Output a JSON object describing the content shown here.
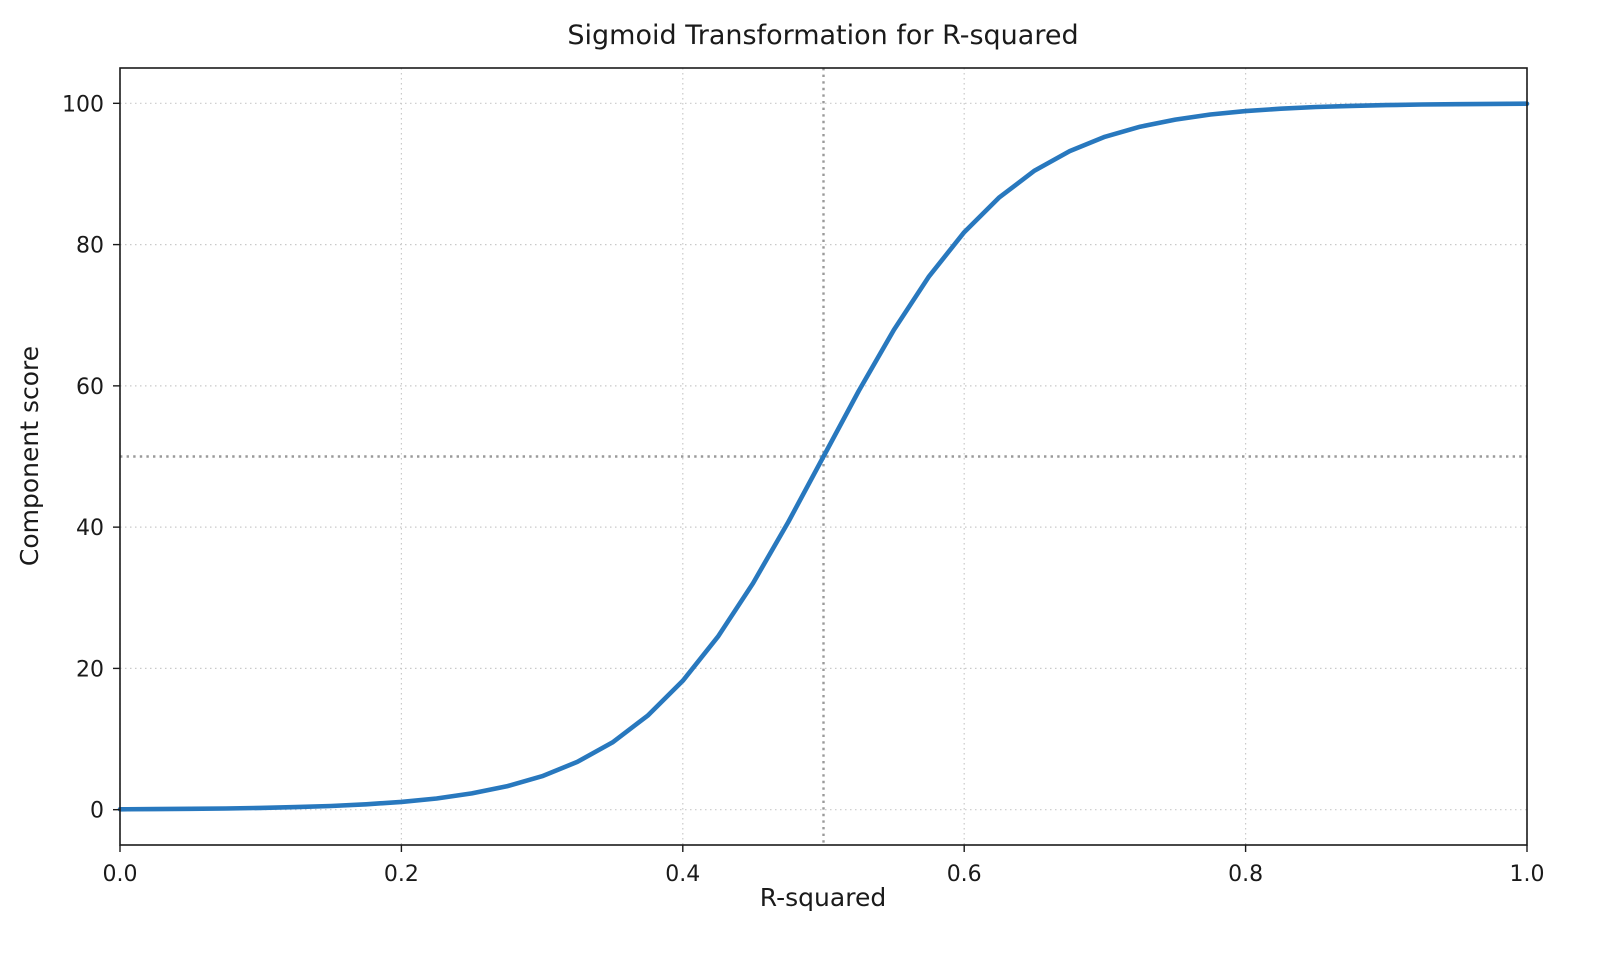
{
  "chart_data": {
    "type": "line",
    "title": "Sigmoid Transformation for R-squared",
    "xlabel": "R-squared",
    "ylabel": "Component score",
    "xlim": [
      0,
      1
    ],
    "ylim": [
      -5,
      105
    ],
    "x_ticks": [
      0.0,
      0.2,
      0.4,
      0.6,
      0.8,
      1.0
    ],
    "x_tick_labels": [
      "0.0",
      "0.2",
      "0.4",
      "0.6",
      "0.8",
      "1.0"
    ],
    "y_ticks": [
      0,
      20,
      40,
      60,
      80,
      100
    ],
    "y_tick_labels": [
      "0",
      "20",
      "40",
      "60",
      "80",
      "100"
    ],
    "grid": true,
    "legend": "none",
    "function": "y = 100 / (1 + exp(-15 * (x - 0.5)))",
    "reference_lines": {
      "x": 0.5,
      "y": 50,
      "style": "dotted"
    },
    "colors": {
      "line": "#2878be",
      "grid": "#c9c9c9",
      "reference": "#9a9a9a",
      "axis": "#1a1a1a",
      "background": "#ffffff"
    },
    "series": [
      {
        "name": "sigmoid",
        "x": [
          0,
          0.025,
          0.05,
          0.075,
          0.1,
          0.125,
          0.15,
          0.175,
          0.2,
          0.225,
          0.25,
          0.275,
          0.3,
          0.325,
          0.35,
          0.375,
          0.4,
          0.425,
          0.45,
          0.475,
          0.5,
          0.525,
          0.55,
          0.575,
          0.6,
          0.625,
          0.65,
          0.675,
          0.7,
          0.725,
          0.75,
          0.775,
          0.8,
          0.825,
          0.85,
          0.875,
          0.9,
          0.925,
          0.95,
          0.975,
          1
        ],
        "y": [
          0.06,
          0.08,
          0.12,
          0.17,
          0.25,
          0.36,
          0.52,
          0.76,
          1.1,
          1.59,
          2.3,
          3.31,
          4.74,
          6.76,
          9.53,
          13.3,
          18.24,
          24.51,
          32.08,
          40.73,
          50,
          59.27,
          67.92,
          75.49,
          81.76,
          86.7,
          90.47,
          93.24,
          95.26,
          96.69,
          97.7,
          98.41,
          98.9,
          99.24,
          99.48,
          99.64,
          99.75,
          99.83,
          99.88,
          99.92,
          99.94
        ]
      }
    ]
  }
}
